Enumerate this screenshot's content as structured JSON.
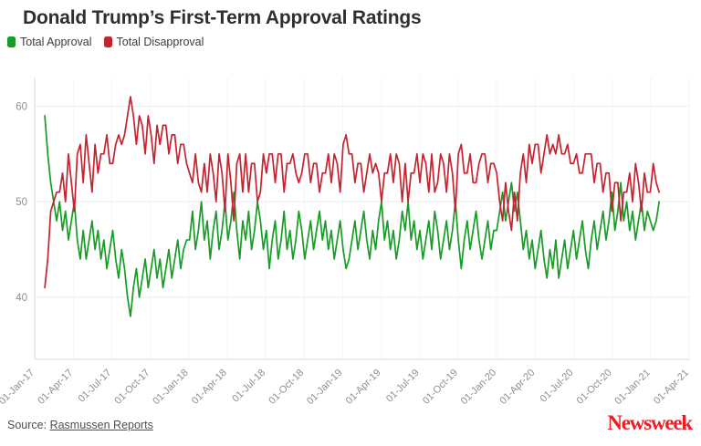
{
  "page": {
    "title": "Donald Trump’s First-Term Approval Ratings",
    "source_label": "Source:",
    "source_link_text": "Rasmussen Reports",
    "brand_name": "Newsweek",
    "brand_color": "#ee1c25"
  },
  "chart_data": {
    "type": "line",
    "title": "Donald Trump’s First-Term Approval Ratings",
    "grid": true,
    "legend_position": "top-left",
    "x_axis": {
      "start": "2017-01-01",
      "end": "2021-04-01",
      "tick_labels": [
        "01-Jan-17",
        "01-Apr-17",
        "01-Jul-17",
        "01-Oct-17",
        "01-Jan-18",
        "01-Apr-18",
        "01-Jul-18",
        "01-Oct-18",
        "01-Jan-19",
        "01-Apr-19",
        "01-Jul-19",
        "01-Oct-19",
        "01-Jan-20",
        "01-Apr-20",
        "01-Jul-20",
        "01-Oct-20",
        "01-Jan-21",
        "01-Apr-21"
      ]
    },
    "y_axis": {
      "min": 33.5,
      "max": 63,
      "ticks": [
        40,
        50,
        60
      ]
    },
    "series_start": "2017-01-25",
    "series_step_days": 7,
    "series": [
      {
        "name": "Total Approval",
        "color": "#179c26",
        "values": [
          59,
          55,
          52,
          50,
          48,
          50,
          47,
          49,
          46,
          48,
          50,
          46,
          44,
          47,
          44,
          46,
          48,
          45,
          47,
          44,
          46,
          43,
          45,
          47,
          44,
          42,
          45,
          43,
          40,
          38,
          41,
          43,
          40,
          42,
          44,
          41,
          43,
          45,
          42,
          44,
          41,
          43,
          45,
          42,
          44,
          46,
          43,
          45,
          46,
          46,
          49,
          45,
          47,
          50,
          46,
          48,
          44,
          47,
          49,
          45,
          47,
          50,
          46,
          48,
          51,
          47,
          44,
          48,
          46,
          49,
          45,
          47,
          50,
          48,
          45,
          47,
          43,
          46,
          48,
          44,
          46,
          49,
          45,
          47,
          44,
          46,
          49,
          47,
          44,
          46,
          48,
          45,
          47,
          49,
          46,
          48,
          45,
          47,
          44,
          46,
          48,
          45,
          43,
          44,
          46,
          48,
          45,
          47,
          49,
          46,
          44,
          47,
          45,
          48,
          50,
          46,
          48,
          45,
          47,
          44,
          46,
          49,
          47,
          50,
          46,
          48,
          45,
          47,
          44,
          46,
          48,
          45,
          49,
          47,
          44,
          46,
          48,
          45,
          47,
          50,
          46,
          43,
          46,
          48,
          45,
          47,
          49,
          46,
          44,
          46,
          48,
          45,
          47,
          47,
          49,
          51,
          48,
          50,
          52,
          49,
          51,
          48,
          45,
          47,
          44,
          46,
          43,
          45,
          47,
          44,
          42,
          45,
          43,
          46,
          42,
          44,
          46,
          43,
          45,
          47,
          44,
          46,
          48,
          45,
          43,
          46,
          48,
          45,
          47,
          49,
          46,
          48,
          51,
          47,
          49,
          52,
          48,
          50,
          47,
          49,
          46,
          48,
          50,
          47,
          49,
          48,
          47,
          48,
          50
        ]
      },
      {
        "name": "Total Disapproval",
        "color": "#c5232f",
        "values": [
          41,
          44,
          49,
          50,
          51,
          51,
          53,
          50,
          55,
          52,
          49,
          55,
          56,
          52,
          57,
          54,
          51,
          56,
          53,
          55,
          55,
          57,
          54,
          54,
          56,
          57,
          56,
          57,
          59,
          61,
          59,
          56,
          59,
          58,
          55,
          59,
          57,
          54,
          58,
          56,
          58,
          58,
          55,
          57,
          57,
          54,
          56,
          56,
          54,
          53,
          52,
          55,
          52,
          51,
          54,
          51,
          55,
          53,
          50,
          55,
          53,
          49,
          55,
          52,
          48,
          54,
          55,
          51,
          55,
          51,
          54,
          54,
          50,
          51,
          55,
          53,
          55,
          55,
          52,
          55,
          55,
          51,
          54,
          54,
          55,
          53,
          52,
          53,
          55,
          55,
          52,
          54,
          54,
          51,
          53,
          53,
          55,
          52,
          55,
          54,
          51,
          56,
          57,
          55,
          55,
          52,
          54,
          54,
          51,
          53,
          55,
          53,
          54,
          53,
          50,
          53,
          53,
          55,
          52,
          55,
          54,
          50,
          54,
          50,
          53,
          53,
          55,
          52,
          55,
          54,
          51,
          55,
          51,
          52,
          55,
          54,
          51,
          55,
          53,
          49,
          55,
          56,
          53,
          53,
          55,
          52,
          52,
          54,
          55,
          55,
          52,
          54,
          54,
          53,
          50,
          48,
          52,
          49,
          47,
          51,
          48,
          53,
          55,
          52,
          56,
          54,
          56,
          56,
          53,
          55,
          57,
          55,
          56,
          55,
          57,
          55,
          55,
          56,
          54,
          54,
          55,
          53,
          53,
          55,
          55,
          55,
          52,
          54,
          54,
          51,
          53,
          53,
          49,
          52,
          52,
          48,
          51,
          51,
          53,
          50,
          54,
          52,
          49,
          53,
          51,
          51,
          54,
          52,
          51
        ]
      }
    ]
  }
}
